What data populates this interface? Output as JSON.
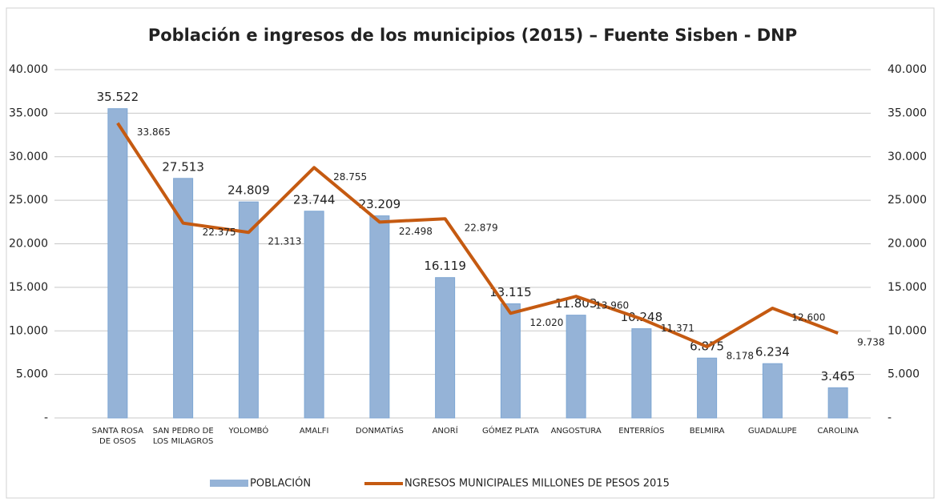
{
  "chart_data": {
    "type": "bar-line",
    "title": "Población e ingresos de los municipios (2015) – Fuente Sisben - DNP",
    "categories": [
      "SANTA ROSA DE OSOS",
      "SAN PEDRO DE LOS MILAGROS",
      "YOLOMBÓ",
      "AMALFI",
      "DONMATÍAS",
      "ANORÍ",
      "GÓMEZ PLATA",
      "ANGOSTURA",
      "ENTERRÍOS",
      "BELMIRA",
      "GUADALUPE",
      "CAROLINA"
    ],
    "series": [
      {
        "name": "POBLACIÓN",
        "type": "bar",
        "color": "#95b3d7",
        "values": [
          35522,
          27513,
          24809,
          23744,
          23209,
          16119,
          13115,
          11803,
          10248,
          6875,
          6234,
          3465
        ],
        "value_labels": [
          "35.522",
          "27.513",
          "24.809",
          "23.744",
          "23.209",
          "16.119",
          "13.115",
          "11.803",
          "10.248",
          "6.875",
          "6.234",
          "3.465"
        ]
      },
      {
        "name": "NGRESOS MUNICIPALES  MILLONES DE PESOS 2015",
        "type": "line",
        "color": "#c55a11",
        "axis": "y2",
        "values": [
          33865,
          22375,
          21313,
          28755,
          22498,
          22879,
          12020,
          13960,
          11371,
          8178,
          12600,
          9738
        ],
        "value_labels": [
          "33.865",
          "22.375",
          "21.313",
          "28.755",
          "22.498",
          "22.879",
          "12.020",
          "13.960",
          "11.371",
          "8.178",
          "12.600",
          "9.738"
        ]
      }
    ],
    "ylim": [
      0,
      40000
    ],
    "yticks": [
      {
        "value": 0,
        "label": "-"
      },
      {
        "value": 5000,
        "label": "5.000"
      },
      {
        "value": 10000,
        "label": "10.000"
      },
      {
        "value": 15000,
        "label": "15.000"
      },
      {
        "value": 20000,
        "label": "20.000"
      },
      {
        "value": 25000,
        "label": "25.000"
      },
      {
        "value": 30000,
        "label": "30.000"
      },
      {
        "value": 35000,
        "label": "35.000"
      },
      {
        "value": 40000,
        "label": "40.000"
      }
    ],
    "y2lim": [
      0,
      40000
    ],
    "y2ticks": [
      {
        "value": 0,
        "label": "-"
      },
      {
        "value": 5000,
        "label": "5.000"
      },
      {
        "value": 10000,
        "label": "10.000"
      },
      {
        "value": 15000,
        "label": "15.000"
      },
      {
        "value": 20000,
        "label": "20.000"
      },
      {
        "value": 25000,
        "label": "25.000"
      },
      {
        "value": 30000,
        "label": "30.000"
      },
      {
        "value": 35000,
        "label": "35.000"
      },
      {
        "value": 40000,
        "label": "40.000"
      }
    ],
    "grid": true,
    "legend": "bottom"
  }
}
